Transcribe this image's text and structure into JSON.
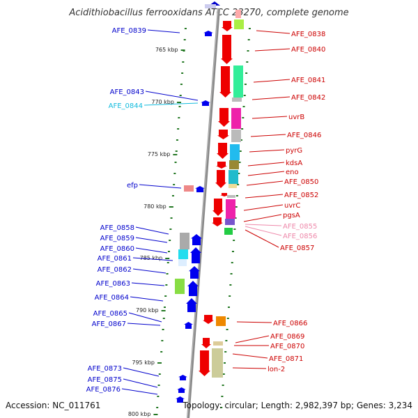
{
  "title": "Acidithiobacillus ferrooxidans ATCC 23270, complete genome",
  "footer": {
    "accession": "Accession: NC_011761",
    "summary": "Topology: circular; Length: 2,982,397 bp; Genes: 3,234"
  },
  "colors": {
    "forward_label": "#cc0000",
    "reverse_label": "#0000cc",
    "light_red_label": "#ee88aa",
    "light_blue_label": "#11bbdd",
    "tick": "#227722",
    "axis": "#888888"
  },
  "kbp_marks": [
    "765 kbp",
    "770 kbp",
    "775 kbp",
    "780 kbp",
    "785 kbp",
    "790 kbp",
    "795 kbp",
    "800 kbp"
  ],
  "right_labels": [
    {
      "text": "AFE_0838",
      "color": "#cc0000"
    },
    {
      "text": "AFE_0840",
      "color": "#cc0000"
    },
    {
      "text": "AFE_0841",
      "color": "#cc0000"
    },
    {
      "text": "AFE_0842",
      "color": "#cc0000"
    },
    {
      "text": "uvrB",
      "color": "#cc0000"
    },
    {
      "text": "AFE_0846",
      "color": "#cc0000"
    },
    {
      "text": "pyrG",
      "color": "#cc0000"
    },
    {
      "text": "kdsA",
      "color": "#cc0000"
    },
    {
      "text": "eno",
      "color": "#cc0000"
    },
    {
      "text": "AFE_0850",
      "color": "#cc0000"
    },
    {
      "text": "AFE_0852",
      "color": "#cc0000"
    },
    {
      "text": "uvrC",
      "color": "#cc0000"
    },
    {
      "text": "pgsA",
      "color": "#cc0000"
    },
    {
      "text": "AFE_0855",
      "color": "#ee88aa"
    },
    {
      "text": "AFE_0856",
      "color": "#ee88aa"
    },
    {
      "text": "AFE_0857",
      "color": "#cc0000"
    },
    {
      "text": "AFE_0866",
      "color": "#cc0000"
    },
    {
      "text": "AFE_0869",
      "color": "#cc0000"
    },
    {
      "text": "AFE_0870",
      "color": "#cc0000"
    },
    {
      "text": "AFE_0871",
      "color": "#cc0000"
    },
    {
      "text": "lon-2",
      "color": "#cc0000"
    }
  ],
  "left_labels": [
    {
      "text": "AFE_0839",
      "color": "#0000cc"
    },
    {
      "text": "AFE_0843",
      "color": "#0000cc"
    },
    {
      "text": "AFE_0844",
      "color": "#11bbdd"
    },
    {
      "text": "efp",
      "color": "#0000cc"
    },
    {
      "text": "AFE_0858",
      "color": "#0000cc"
    },
    {
      "text": "AFE_0859",
      "color": "#0000cc"
    },
    {
      "text": "AFE_0860",
      "color": "#0000cc"
    },
    {
      "text": "AFE_0861",
      "color": "#0000cc"
    },
    {
      "text": "AFE_0862",
      "color": "#0000cc"
    },
    {
      "text": "AFE_0863",
      "color": "#0000cc"
    },
    {
      "text": "AFE_0864",
      "color": "#0000cc"
    },
    {
      "text": "AFE_0865",
      "color": "#0000cc"
    },
    {
      "text": "AFE_0867",
      "color": "#0000cc"
    },
    {
      "text": "AFE_0873",
      "color": "#0000cc"
    },
    {
      "text": "AFE_0875",
      "color": "#0000cc"
    },
    {
      "text": "AFE_0876",
      "color": "#0000cc"
    }
  ]
}
